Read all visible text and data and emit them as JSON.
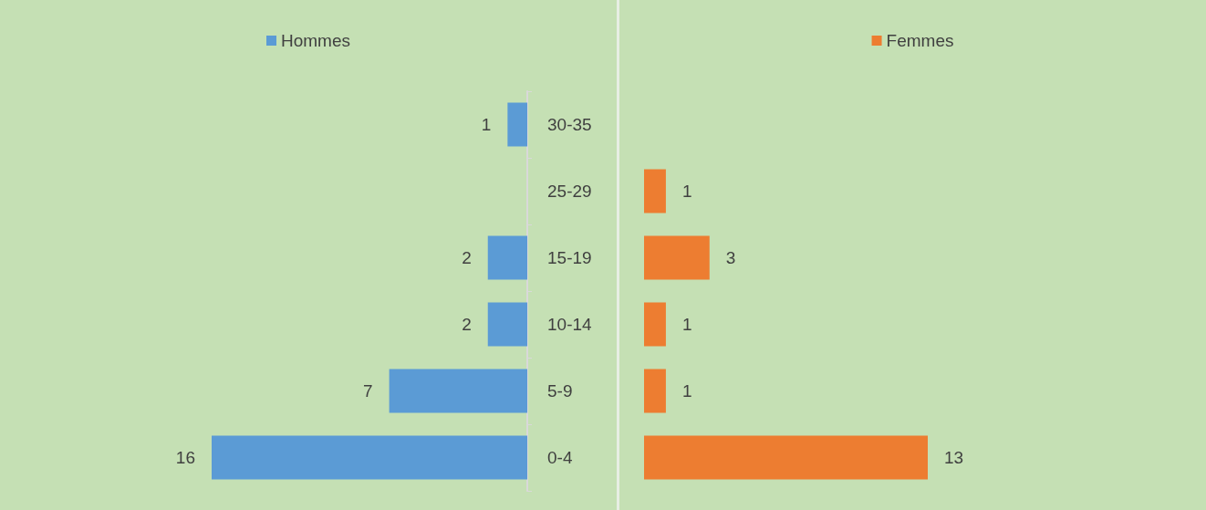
{
  "chart_data": [
    {
      "type": "bar",
      "orientation": "horizontal",
      "categories": [
        "30-35",
        "25-29",
        "15-19",
        "10-14",
        "5-9",
        "0-4"
      ],
      "series": [
        {
          "name": "Hommes",
          "color": "#5b9bd5",
          "values": [
            1,
            null,
            2,
            2,
            7,
            16
          ]
        }
      ],
      "xlim": [
        16,
        0
      ],
      "data_labels": true,
      "legend": "top",
      "tick_labels": "y"
    },
    {
      "type": "bar",
      "orientation": "horizontal",
      "categories": [
        null,
        null,
        null,
        null,
        null,
        null
      ],
      "series": [
        {
          "name": "Femmes",
          "color": "#ed7d31",
          "values": [
            null,
            1,
            3,
            1,
            1,
            13
          ]
        }
      ],
      "xlim": [
        0,
        13
      ],
      "data_labels": true,
      "legend": "top",
      "tick_labels": false
    }
  ]
}
